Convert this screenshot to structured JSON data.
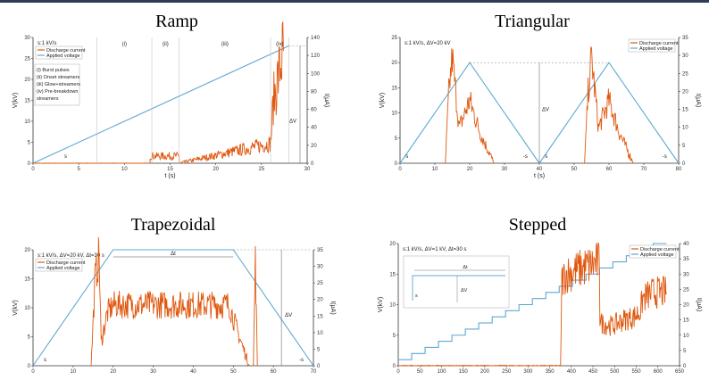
{
  "colors": {
    "current": "#e0580f",
    "voltage": "#5fa8d3",
    "axis": "#333333"
  },
  "chart_data": [
    {
      "type": "line",
      "title": "Ramp",
      "params": "s:1 kV/s",
      "xlabel": "t (s)",
      "ylabel": "V(kV)",
      "y2label": "I(μA)",
      "xlim": [
        0,
        30
      ],
      "ylim": [
        0,
        30
      ],
      "y2lim": [
        0,
        140
      ],
      "xticks": [
        0,
        5,
        10,
        15,
        20,
        25,
        30
      ],
      "yticks": [
        0,
        5,
        10,
        15,
        20,
        25,
        30
      ],
      "y2ticks": [
        0,
        20,
        40,
        60,
        80,
        100,
        120,
        140
      ],
      "legend": [
        "Discharge current",
        "Applied voltage"
      ],
      "legend_position": "top-left",
      "phase_labels": [
        "(i)",
        "(ii)",
        "(iii)",
        "(iv)"
      ],
      "phase_boundaries_s": [
        7,
        13,
        16,
        26,
        28
      ],
      "phase_key": [
        "(i)    Burst pulses",
        "(ii)  Onset streamers",
        "(iii) Glow+streamers",
        "(iv) Pre-breakdown",
        "streamers"
      ],
      "slope_label": "s",
      "delta_label": "ΔV",
      "voltage": {
        "x": [
          0,
          28
        ],
        "y": [
          0,
          28
        ]
      },
      "current_segments": [
        {
          "x": [
            0,
            12.8,
            12.8,
            16,
            16,
            26,
            26.3,
            27.4
          ],
          "y": [
            0,
            0,
            8,
            8,
            0,
            22,
            70,
            125
          ]
        }
      ]
    },
    {
      "type": "line",
      "title": "Triangular",
      "params": "s:1 kV/s, ΔV=20 kV",
      "xlabel": "t (s)",
      "ylabel": "V(kV)",
      "y2label": "I(μA)",
      "xlim": [
        0,
        80
      ],
      "ylim": [
        0,
        25
      ],
      "y2lim": [
        0,
        35
      ],
      "xticks": [
        0,
        10,
        20,
        30,
        40,
        50,
        60,
        70,
        80
      ],
      "yticks": [
        0,
        5,
        10,
        15,
        20,
        25
      ],
      "y2ticks": [
        0,
        5,
        10,
        15,
        20,
        25,
        30,
        35
      ],
      "legend": [
        "Discharge current",
        "Applied voltage"
      ],
      "legend_position": "top-right",
      "slope_labels": [
        "s",
        "-s",
        "s",
        "-s"
      ],
      "delta_label": "ΔV",
      "voltage": {
        "x": [
          0,
          20,
          40,
          60,
          80
        ],
        "y": [
          0,
          20,
          0,
          20,
          0
        ]
      },
      "current_segments": [
        {
          "x": [
            13,
            14,
            15,
            17,
            20,
            23,
            27
          ],
          "y": [
            0,
            14,
            21,
            7,
            12.5,
            6,
            0
          ]
        },
        {
          "x": [
            53,
            54,
            55,
            57,
            60,
            63,
            67
          ],
          "y": [
            0,
            14,
            21,
            7,
            12.5,
            6,
            0
          ]
        }
      ]
    },
    {
      "type": "line",
      "title": "Trapezoidal",
      "params": "s:1 kV/s, ΔV=20 kV, Δt=30 s",
      "xlabel": "",
      "ylabel": "V(kV)",
      "y2label": "I(μA)",
      "xlim": [
        0,
        70
      ],
      "ylim": [
        0,
        20
      ],
      "y2lim": [
        0,
        35
      ],
      "xticks": [
        0,
        10,
        20,
        30,
        40,
        50,
        60,
        70
      ],
      "yticks": [
        0,
        5,
        10,
        15,
        20
      ],
      "y2ticks": [
        0,
        5,
        10,
        15,
        20,
        25,
        30,
        35
      ],
      "legend": [
        "Discharge current",
        "Applied voltage"
      ],
      "legend_position": "top-left",
      "slope_labels": [
        "s",
        "-s"
      ],
      "delta_label": "ΔV",
      "dt_label": "Δt",
      "voltage": {
        "x": [
          0,
          20,
          50,
          70
        ],
        "y": [
          0,
          20,
          20,
          0
        ]
      },
      "current_segments": [
        {
          "x": [
            14.5,
            15.5,
            16.5,
            17,
            18.5,
            20,
            49,
            51,
            54
          ],
          "y": [
            0,
            15,
            19,
            4,
            9,
            10.5,
            10.5,
            6,
            0
          ]
        },
        {
          "x": [
            55,
            55.5,
            56
          ],
          "y": [
            0,
            18,
            0
          ]
        }
      ]
    },
    {
      "type": "line",
      "title": "Stepped",
      "params": "s:1 kV/s, ΔV=1 kV, Δt=30 s",
      "xlabel": "",
      "ylabel": "V(kV)",
      "y2label": "I(μA)",
      "xlim": [
        0,
        650
      ],
      "ylim": [
        0,
        20
      ],
      "y2lim": [
        0,
        40
      ],
      "xticks": [
        0,
        50,
        100,
        150,
        200,
        250,
        300,
        350,
        400,
        450,
        500,
        550,
        600,
        650
      ],
      "yticks": [
        0,
        5,
        10,
        15,
        20
      ],
      "y2ticks": [
        0,
        5,
        10,
        15,
        20,
        25,
        30,
        35,
        40
      ],
      "legend": [
        "Discharge current",
        "Applied voltage"
      ],
      "legend_position": "top-right",
      "inset_labels": [
        "Δt",
        "ΔV",
        "s"
      ],
      "voltage_step": {
        "dt": 31,
        "dv": 1,
        "start": 1,
        "end": 20
      },
      "current_segments": [
        {
          "x": [
            0,
            375,
            378,
            388,
            465,
            466,
            470,
            495,
            520,
            545,
            560,
            565,
            590,
            620
          ],
          "y": [
            0,
            0,
            14,
            15,
            17,
            8,
            7,
            6.5,
            7.5,
            8,
            9,
            11,
            12,
            12
          ]
        }
      ]
    }
  ]
}
